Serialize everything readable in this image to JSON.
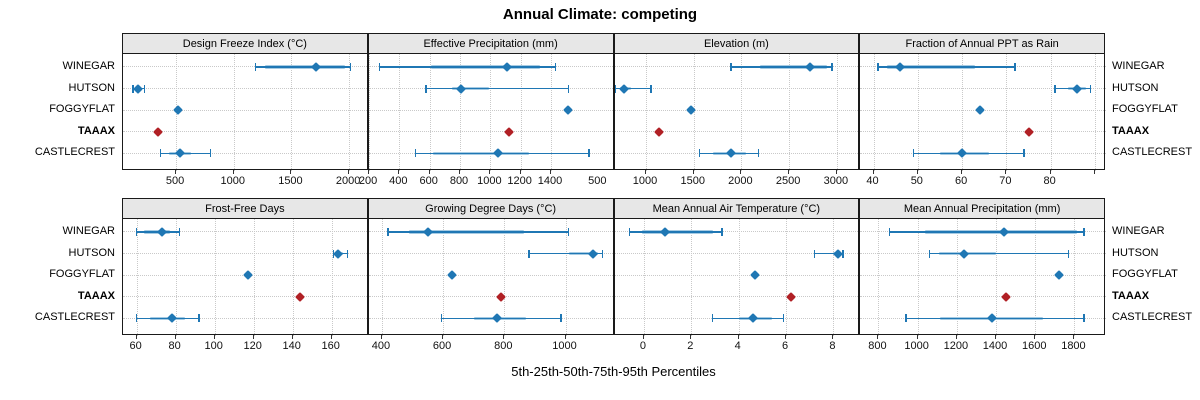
{
  "chart_data": {
    "type": "dotplot",
    "title": "Annual Climate: competing",
    "xlabel": "5th-25th-50th-75th-95th Percentiles",
    "stations": [
      "WINEGAR",
      "HUTSON",
      "FOGGYFLAT",
      "TAAAX",
      "CASTLECREST"
    ],
    "highlight_station": "TAAAX",
    "percentiles": [
      "5th",
      "25th",
      "50th",
      "75th",
      "95th"
    ],
    "colors": {
      "series_blue": "#1f77b4",
      "band_blue": "#a6cbe3",
      "highlight_red": "#b12025",
      "strip_bg": "#e7e7e7",
      "grid": "#c9c9c9",
      "border": "#1a1a1a"
    },
    "panels": [
      {
        "title": "Design Freeze Index (°C)",
        "domain": [
          40,
          2170
        ],
        "ticks": [
          [
            500,
            "500"
          ],
          [
            1000,
            "1000"
          ],
          [
            1500,
            "1500"
          ],
          [
            2000,
            "2000"
          ]
        ],
        "values": {
          "WINEGAR": [
            1190,
            1270,
            1710,
            1960,
            2010
          ],
          "HUTSON": [
            125,
            155,
            170,
            190,
            225
          ],
          "FOGGYFLAT": [
            null,
            null,
            515,
            null,
            null
          ],
          "TAAAX": [
            null,
            null,
            345,
            null,
            null
          ],
          "CASTLECREST": [
            365,
            440,
            535,
            630,
            800
          ]
        }
      },
      {
        "title": "Effective Precipitation (mm)",
        "domain": [
          198,
          1819
        ],
        "ticks": [
          [
            200,
            "200"
          ],
          [
            400,
            "400"
          ],
          [
            600,
            "600"
          ],
          [
            800,
            "800"
          ],
          [
            1000,
            "1000"
          ],
          [
            1200,
            "1200"
          ],
          [
            1400,
            "1400"
          ]
        ],
        "values": {
          "WINEGAR": [
            270,
            610,
            1110,
            1330,
            1430
          ],
          "HUTSON": [
            575,
            745,
            805,
            990,
            1515
          ],
          "FOGGYFLAT": [
            null,
            null,
            1515,
            null,
            null
          ],
          "TAAAX": [
            null,
            null,
            1120,
            null,
            null
          ],
          "CASTLECREST": [
            505,
            620,
            1050,
            1255,
            1650
          ]
        }
      },
      {
        "title": "Elevation (m)",
        "domain": [
          670,
          3245
        ],
        "ticks": [
          [
            500,
            "500"
          ],
          [
            1000,
            "1000"
          ],
          [
            1500,
            "1500"
          ],
          [
            2000,
            "2000"
          ],
          [
            2500,
            "2500"
          ],
          [
            3000,
            "3000"
          ]
        ],
        "values": {
          "WINEGAR": [
            1890,
            2190,
            2720,
            2900,
            2950
          ],
          "HUTSON": [
            680,
            730,
            765,
            840,
            1050
          ],
          "FOGGYFLAT": [
            null,
            null,
            1470,
            null,
            null
          ],
          "TAAAX": [
            null,
            null,
            1140,
            null,
            null
          ],
          "CASTLECREST": [
            1560,
            1700,
            1890,
            2050,
            2180
          ]
        }
      },
      {
        "title": "Fraction of Annual PPT as Rain",
        "domain": [
          37,
          92.5
        ],
        "ticks": [
          [
            40,
            "40"
          ],
          [
            50,
            "50"
          ],
          [
            60,
            "60"
          ],
          [
            70,
            "70"
          ],
          [
            80,
            "80"
          ],
          [
            90,
            ""
          ]
        ],
        "values": {
          "WINEGAR": [
            41,
            43,
            46,
            63,
            72
          ],
          "HUTSON": [
            81,
            84,
            86,
            88,
            89
          ],
          "FOGGYFLAT": [
            null,
            null,
            64,
            null,
            null
          ],
          "TAAAX": [
            null,
            null,
            75,
            null,
            null
          ],
          "CASTLECREST": [
            49,
            55,
            60,
            66,
            74
          ]
        }
      },
      {
        "title": "Frost-Free Days",
        "domain": [
          53,
          179
        ],
        "ticks": [
          [
            60,
            "60"
          ],
          [
            80,
            "80"
          ],
          [
            100,
            "100"
          ],
          [
            120,
            "120"
          ],
          [
            140,
            "140"
          ],
          [
            160,
            "160"
          ]
        ],
        "values": {
          "WINEGAR": [
            60,
            64,
            73,
            77,
            82
          ],
          "HUTSON": [
            161,
            162,
            163,
            166,
            168
          ],
          "FOGGYFLAT": [
            null,
            null,
            117,
            null,
            null
          ],
          "TAAAX": [
            null,
            null,
            144,
            null,
            null
          ],
          "CASTLECREST": [
            60,
            67,
            78,
            85,
            92
          ]
        }
      },
      {
        "title": "Growing Degree Days (°C)",
        "domain": [
          357,
          1160
        ],
        "ticks": [
          [
            400,
            "400"
          ],
          [
            600,
            "600"
          ],
          [
            800,
            "800"
          ],
          [
            1000,
            "1000"
          ]
        ],
        "values": {
          "WINEGAR": [
            420,
            490,
            550,
            865,
            1010
          ],
          "HUTSON": [
            880,
            1010,
            1090,
            1105,
            1120
          ],
          "FOGGYFLAT": [
            null,
            null,
            630,
            null,
            null
          ],
          "TAAAX": [
            null,
            null,
            790,
            null,
            null
          ],
          "CASTLECREST": [
            595,
            700,
            775,
            870,
            985
          ]
        }
      },
      {
        "title": "Mean Annual Air Temperature (°C)",
        "domain": [
          -1.24,
          9.13
        ],
        "ticks": [
          [
            0,
            "0"
          ],
          [
            2,
            "2"
          ],
          [
            4,
            "4"
          ],
          [
            6,
            "6"
          ],
          [
            8,
            "8"
          ]
        ],
        "values": {
          "WINEGAR": [
            -0.6,
            -0.1,
            0.9,
            2.9,
            3.3
          ],
          "HUTSON": [
            7.2,
            8.0,
            8.2,
            8.3,
            8.4
          ],
          "FOGGYFLAT": [
            null,
            null,
            4.7,
            null,
            null
          ],
          "TAAAX": [
            null,
            null,
            6.2,
            null,
            null
          ],
          "CASTLECREST": [
            2.9,
            4.0,
            4.6,
            5.4,
            5.9
          ]
        }
      },
      {
        "title": "Mean Annual Precipitation (mm)",
        "domain": [
          707,
          1961
        ],
        "ticks": [
          [
            800,
            "800"
          ],
          [
            1000,
            "1000"
          ],
          [
            1200,
            "1200"
          ],
          [
            1400,
            "1400"
          ],
          [
            1600,
            "1600"
          ],
          [
            1800,
            "1800"
          ]
        ],
        "values": {
          "WINEGAR": [
            855,
            1035,
            1440,
            1815,
            1850
          ],
          "HUTSON": [
            1060,
            1110,
            1235,
            1400,
            1770
          ],
          "FOGGYFLAT": [
            null,
            null,
            1720,
            null,
            null
          ],
          "TAAAX": [
            null,
            null,
            1450,
            null,
            null
          ],
          "CASTLECREST": [
            940,
            1115,
            1380,
            1640,
            1850
          ]
        }
      }
    ]
  }
}
